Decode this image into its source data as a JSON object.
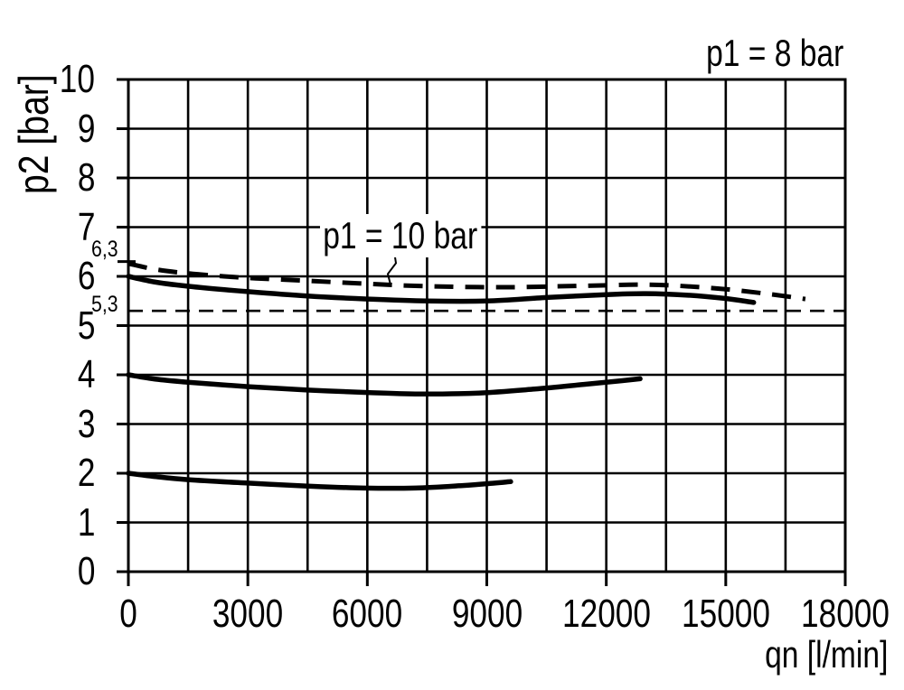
{
  "colors": {
    "ink": "#000000",
    "background": "#ffffff"
  },
  "chart_data": {
    "type": "line",
    "xlabel": "qn [l/min]",
    "ylabel": "p2 [bar]",
    "xlim": [
      0,
      18000
    ],
    "ylim": [
      0,
      10
    ],
    "x_ticks": [
      0,
      3000,
      6000,
      9000,
      12000,
      15000,
      18000
    ],
    "y_ticks": [
      0,
      1,
      2,
      3,
      4,
      5,
      6,
      7,
      8,
      9,
      10
    ],
    "x_grid_step": 1500,
    "y_grid_step": 1,
    "grid": true,
    "legend_position": "none",
    "reference_lines": [
      {
        "label": "6,3",
        "y": 6.3,
        "style": "axis-tick"
      },
      {
        "label": "5,3",
        "y": 5.3,
        "style": "dashed-horizontal"
      }
    ],
    "annotations": [
      {
        "text": "p1 = 8 bar",
        "position": "top-right"
      },
      {
        "text": "p1 = 10 bar",
        "position": "inside-plot",
        "leader_points": [
          [
            6673,
            6.51
          ],
          [
            6718,
            6.27
          ],
          [
            6514,
            6.05
          ],
          [
            6582,
            5.83
          ]
        ]
      }
    ],
    "series": [
      {
        "id": "curve-p1-10bar-dashed",
        "label": "p1 = 10 bar",
        "style": "dashed",
        "points": [
          [
            0,
            6.26
          ],
          [
            700,
            6.14
          ],
          [
            1500,
            6.06
          ],
          [
            2400,
            6.0
          ],
          [
            3200,
            5.96
          ],
          [
            4500,
            5.91
          ],
          [
            6000,
            5.85
          ],
          [
            7500,
            5.8
          ],
          [
            9500,
            5.78
          ],
          [
            11500,
            5.81
          ],
          [
            13100,
            5.83
          ],
          [
            14700,
            5.76
          ],
          [
            16000,
            5.65
          ],
          [
            17000,
            5.54
          ]
        ]
      },
      {
        "id": "curve-setting-6bar",
        "label": "",
        "style": "solid",
        "points": [
          [
            0,
            6.0
          ],
          [
            700,
            5.88
          ],
          [
            1600,
            5.79
          ],
          [
            3000,
            5.69
          ],
          [
            4500,
            5.6
          ],
          [
            6000,
            5.54
          ],
          [
            7500,
            5.5
          ],
          [
            9000,
            5.5
          ],
          [
            10500,
            5.57
          ],
          [
            12000,
            5.63
          ],
          [
            13000,
            5.65
          ],
          [
            14000,
            5.62
          ],
          [
            15000,
            5.55
          ],
          [
            15700,
            5.47
          ]
        ]
      },
      {
        "id": "curve-setting-4bar",
        "label": "",
        "style": "solid",
        "points": [
          [
            0,
            4.0
          ],
          [
            700,
            3.91
          ],
          [
            1500,
            3.85
          ],
          [
            3000,
            3.76
          ],
          [
            4500,
            3.69
          ],
          [
            6000,
            3.64
          ],
          [
            7400,
            3.61
          ],
          [
            8800,
            3.63
          ],
          [
            10200,
            3.71
          ],
          [
            11500,
            3.81
          ],
          [
            12400,
            3.88
          ],
          [
            12850,
            3.92
          ]
        ]
      },
      {
        "id": "curve-setting-2bar",
        "label": "",
        "style": "solid",
        "points": [
          [
            0,
            2.0
          ],
          [
            700,
            1.93
          ],
          [
            1500,
            1.87
          ],
          [
            3000,
            1.8
          ],
          [
            4500,
            1.74
          ],
          [
            5900,
            1.7
          ],
          [
            7200,
            1.7
          ],
          [
            8400,
            1.75
          ],
          [
            9200,
            1.8
          ],
          [
            9600,
            1.83
          ]
        ]
      }
    ]
  }
}
